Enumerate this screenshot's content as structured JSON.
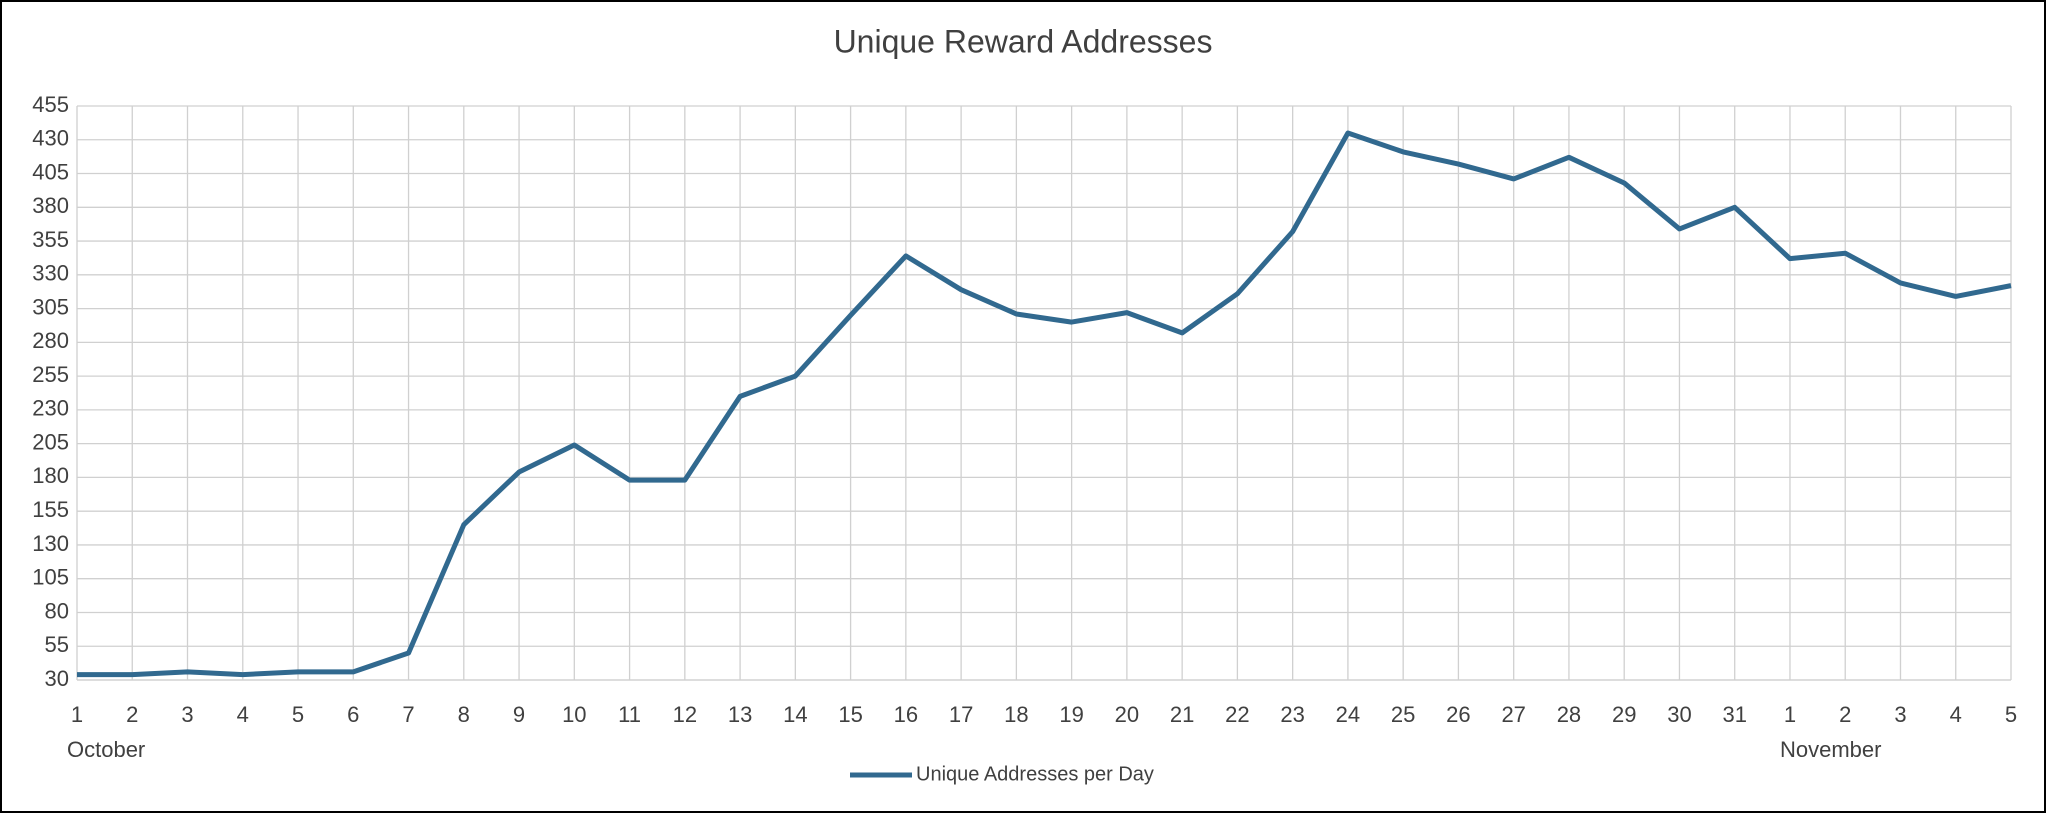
{
  "chart_data": {
    "type": "line",
    "title": "Unique Reward Addresses",
    "categories": [
      "1",
      "2",
      "3",
      "4",
      "5",
      "6",
      "7",
      "8",
      "9",
      "10",
      "11",
      "12",
      "13",
      "14",
      "15",
      "16",
      "17",
      "18",
      "19",
      "20",
      "21",
      "22",
      "23",
      "24",
      "25",
      "26",
      "27",
      "28",
      "29",
      "30",
      "31",
      "1",
      "2",
      "3",
      "4",
      "5"
    ],
    "groups": [
      "October",
      "November"
    ],
    "series": [
      {
        "name": "Unique Addresses per Day",
        "color": "#31698f",
        "values": [
          34,
          34,
          36,
          34,
          36,
          36,
          50,
          145,
          184,
          204,
          178,
          178,
          240,
          255,
          300,
          344,
          319,
          301,
          295,
          302,
          287,
          316,
          362,
          435,
          421,
          412,
          401,
          417,
          398,
          364,
          380,
          342,
          346,
          324,
          314,
          322
        ]
      }
    ],
    "ylim": [
      30,
      455
    ],
    "yticks": [
      30,
      55,
      80,
      105,
      130,
      155,
      180,
      205,
      230,
      255,
      280,
      305,
      330,
      355,
      380,
      405,
      430,
      455
    ],
    "grid": true,
    "legend": "bottom"
  }
}
